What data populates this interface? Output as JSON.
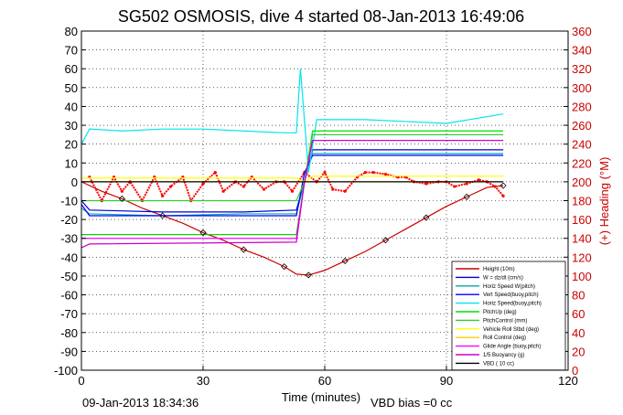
{
  "title": "SG502 OSMOSIS, dive 4 started 08-Jan-2013 16:49:06",
  "footer": {
    "timestamp": "09-Jan-2013 18:34:36",
    "vbd_bias": "VBD bias =0 cc"
  },
  "chart_data": {
    "type": "line",
    "title": "SG502 OSMOSIS, dive 4 started 08-Jan-2013 16:49:06",
    "xlabel": "Time (minutes)",
    "ylabel": "",
    "y2label": "(+) Heading (°M)",
    "xlim": [
      0,
      120
    ],
    "ylim": [
      -100,
      80
    ],
    "y2lim": [
      0,
      360
    ],
    "x_ticks": [
      "0",
      "30",
      "60",
      "90",
      "120"
    ],
    "y_ticks": [
      "80",
      "70",
      "60",
      "50",
      "40",
      "30",
      "20",
      "10",
      "0",
      "-10",
      "-20",
      "-30",
      "-40",
      "-50",
      "-60",
      "-70",
      "-80",
      "-90",
      "-100"
    ],
    "y2_ticks": [
      "360",
      "340",
      "320",
      "300",
      "280",
      "260",
      "240",
      "220",
      "200",
      "180",
      "160",
      "140",
      "120",
      "100",
      "80",
      "60",
      "40",
      "20",
      "0"
    ],
    "grid": true,
    "legend_position": "bottom-right",
    "series": [
      {
        "name": "Height (10m)",
        "color": "#cc0000",
        "x": [
          0,
          5,
          10,
          15,
          20,
          25,
          30,
          35,
          40,
          45,
          50,
          53,
          56,
          60,
          65,
          70,
          75,
          80,
          85,
          90,
          95,
          100,
          104
        ],
        "values": [
          0,
          -5,
          -9,
          -14,
          -18,
          -22,
          -27,
          -31,
          -36,
          -40,
          -45,
          -49,
          -49.5,
          -47,
          -42,
          -37,
          -31,
          -25,
          -19,
          -13,
          -8,
          -3,
          -2
        ]
      },
      {
        "name": "W = dz/dt (cm/s)",
        "color": "#0000cc",
        "x": [
          0,
          2,
          20,
          40,
          53,
          55,
          57,
          104
        ],
        "values": [
          -10,
          -15,
          -16,
          -16,
          -15,
          0,
          17,
          17
        ]
      },
      {
        "name": "Horiz Speed W(pitch)",
        "color": "#00aaaa",
        "x": [
          0,
          2,
          20,
          40,
          53,
          55,
          57,
          104
        ],
        "values": [
          -14,
          -17,
          -18,
          -17,
          -17,
          0,
          15,
          15
        ]
      },
      {
        "name": "Vert Speed(buoy,pitch)",
        "color": "#0000ff",
        "x": [
          0,
          2,
          53,
          55,
          57,
          104
        ],
        "values": [
          -12,
          -18,
          -18,
          5,
          14,
          14
        ]
      },
      {
        "name": "Horiz Speed(buoy,pitch)",
        "color": "#00e5ee",
        "x": [
          0,
          2,
          10,
          20,
          30,
          40,
          50,
          53,
          54,
          56,
          58,
          70,
          80,
          90,
          104
        ],
        "values": [
          20,
          28,
          27,
          28,
          28,
          27,
          26,
          26,
          60,
          5,
          33,
          33,
          32,
          31,
          36
        ]
      },
      {
        "name": "PitchUp (deg)",
        "color": "#00dd00",
        "x": [
          0,
          2,
          53,
          55,
          57,
          104
        ],
        "values": [
          -28,
          -28,
          -28,
          0,
          27,
          27
        ]
      },
      {
        "name": "PitchControl (mm)",
        "color": "#33cc33",
        "x": [
          0,
          2,
          53,
          55,
          57,
          104
        ],
        "values": [
          -10,
          -10,
          -10,
          0,
          25,
          25
        ]
      },
      {
        "name": "Vehicle Roll Stbd (deg)",
        "color": "#ffff00",
        "x": [
          0,
          2,
          53,
          55,
          57,
          104
        ],
        "values": [
          2,
          2,
          2,
          0,
          3,
          3
        ]
      },
      {
        "name": "Roll Control (deg)",
        "color": "#ffcc00",
        "x": [
          0,
          2,
          53,
          55,
          57,
          104
        ],
        "values": [
          0,
          0,
          0,
          0,
          0,
          0
        ]
      },
      {
        "name": "Glide Angle (buoy,pitch)",
        "color": "#ff00ff",
        "x": [
          0,
          2,
          53,
          55,
          57,
          104
        ],
        "values": [
          -30,
          -30,
          -30,
          0,
          22,
          22
        ]
      },
      {
        "name": "1/5 Buoyancy (g)",
        "color": "#cc00cc",
        "x": [
          0,
          2,
          53,
          55,
          57,
          104
        ],
        "values": [
          -35,
          -33,
          -32,
          0,
          22,
          22
        ]
      },
      {
        "name": "VBD ( 10 cc)",
        "color": "#000000",
        "x": [
          0,
          104
        ],
        "values": [
          0,
          0
        ]
      }
    ],
    "heading": {
      "name": "(+) Heading (°M)",
      "color": "#ff0000",
      "x": [
        2,
        5,
        8,
        10,
        12,
        15,
        18,
        20,
        22,
        25,
        27,
        30,
        33,
        35,
        38,
        40,
        42,
        45,
        48,
        50,
        52,
        55,
        58,
        60,
        62,
        65,
        68,
        70,
        72,
        75,
        78,
        80,
        82,
        85,
        88,
        90,
        92,
        95,
        98,
        100,
        102,
        104
      ],
      "values": [
        205,
        180,
        205,
        190,
        200,
        180,
        205,
        185,
        195,
        205,
        180,
        198,
        210,
        190,
        200,
        195,
        205,
        192,
        200,
        200,
        190,
        210,
        200,
        210,
        192,
        190,
        205,
        210,
        210,
        208,
        205,
        205,
        200,
        198,
        200,
        200,
        195,
        198,
        202,
        200,
        195,
        185
      ]
    }
  }
}
